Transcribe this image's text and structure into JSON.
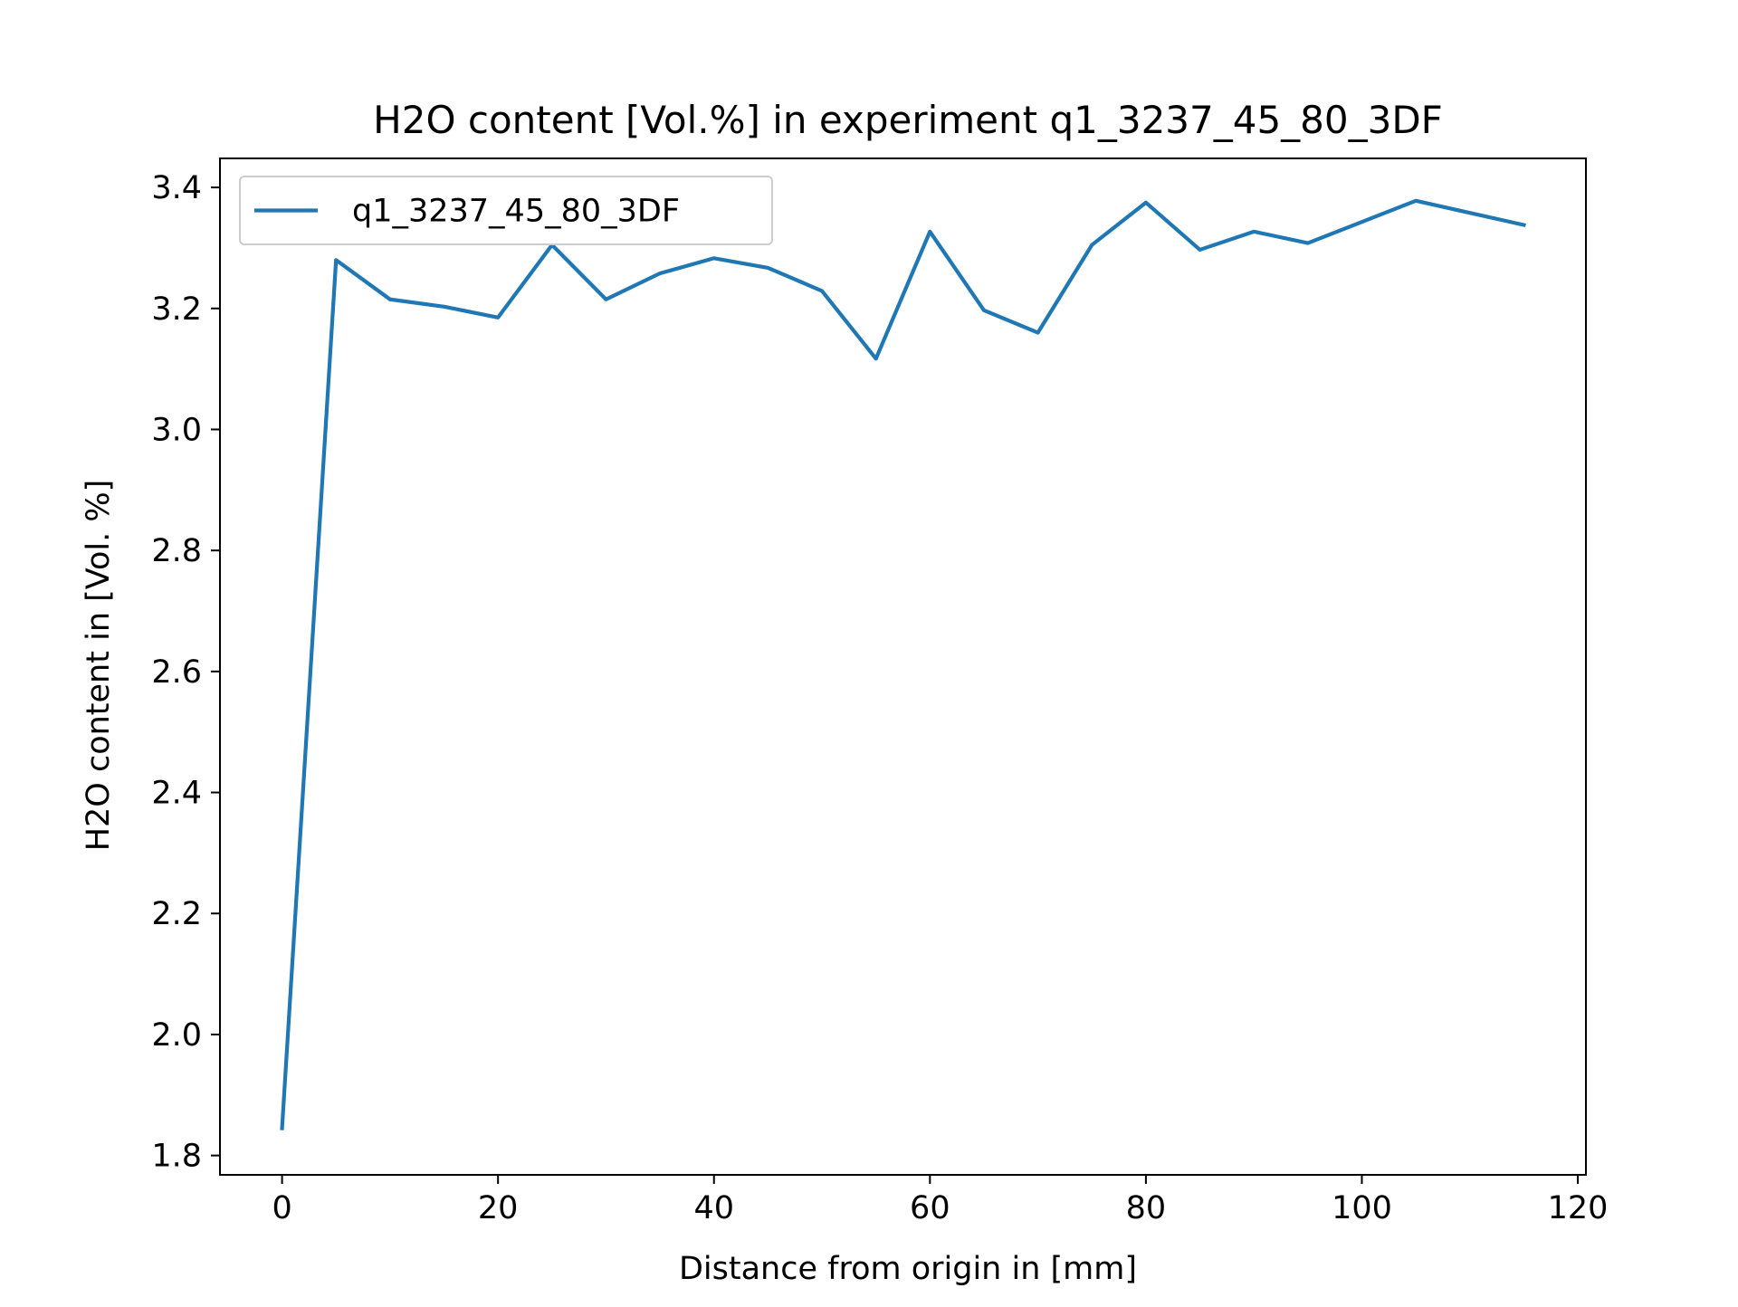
{
  "chart_data": {
    "type": "line",
    "title": "H2O content [Vol.%] in experiment q1_3237_45_80_3DF",
    "xlabel": "Distance from origin in [mm]",
    "ylabel": "H2O content in [Vol. %]",
    "xlim": [
      -5.75,
      120.75
    ],
    "ylim": [
      1.768,
      3.448
    ],
    "xticks": [
      0,
      20,
      40,
      60,
      80,
      100,
      120
    ],
    "xtick_labels": [
      "0",
      "20",
      "40",
      "60",
      "80",
      "100",
      "120"
    ],
    "yticks": [
      1.8,
      2.0,
      2.2,
      2.4,
      2.6,
      2.8,
      3.0,
      3.2,
      3.4
    ],
    "ytick_labels": [
      "1.8",
      "2.0",
      "2.2",
      "2.4",
      "2.6",
      "2.8",
      "3.0",
      "3.2",
      "3.4"
    ],
    "grid": false,
    "legend_position": "upper-left",
    "series": [
      {
        "name": "q1_3237_45_80_3DF",
        "color": "#1f77b4",
        "x": [
          0,
          5,
          10,
          15,
          20,
          25,
          30,
          35,
          40,
          45,
          50,
          55,
          60,
          65,
          70,
          75,
          80,
          85,
          90,
          95,
          100,
          105,
          110,
          115
        ],
        "y": [
          1.845,
          3.28,
          3.215,
          3.203,
          3.185,
          3.305,
          3.215,
          3.258,
          3.283,
          3.267,
          3.229,
          3.117,
          3.327,
          3.197,
          3.16,
          3.305,
          3.375,
          3.297,
          3.327,
          3.308,
          3.343,
          3.378,
          3.358,
          3.338
        ]
      }
    ]
  }
}
